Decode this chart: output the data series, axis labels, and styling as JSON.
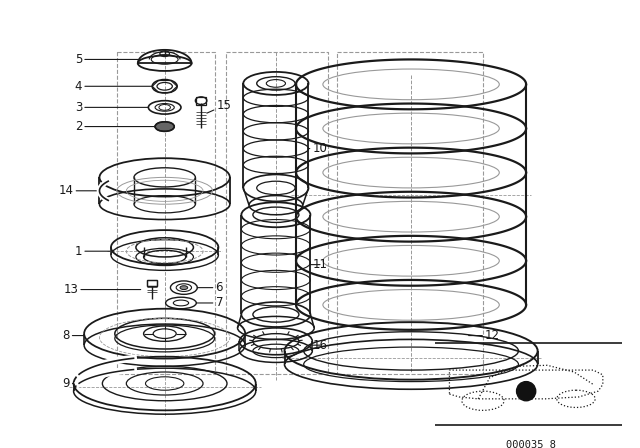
{
  "bg_color": "#ffffff",
  "line_color": "#1a1a1a",
  "dash_color": "#999999",
  "part_code": "000035 8",
  "figsize": [
    6.4,
    4.48
  ],
  "dpi": 100
}
